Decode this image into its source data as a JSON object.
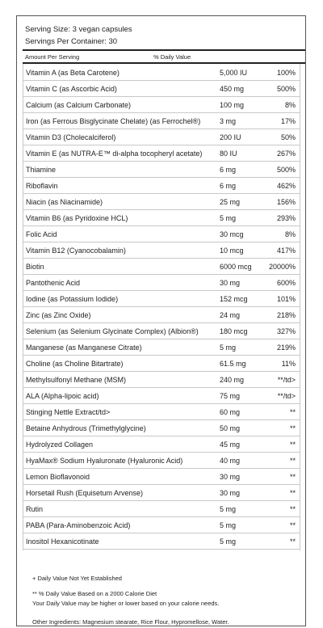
{
  "header": {
    "serving_size": "Serving Size: 3 vegan capsules",
    "servings_per_container": "Servings Per Container: 30",
    "amount_label": "Amount Per Serving",
    "dv_label": "% Daily Value"
  },
  "table": {
    "rows": [
      [
        "Vitamin A (as Beta Carotene)",
        "5,000 IU",
        "100%"
      ],
      [
        "Vitamin C (as Ascorbic Acid)",
        "450 mg",
        "500%"
      ],
      [
        "Calcium (as Calcium Carbonate)",
        "100 mg",
        "8%"
      ],
      [
        "Iron (as Ferrous Bisglycinate Chelate) (as Ferrochel®)",
        "3 mg",
        "17%"
      ],
      [
        "Vitamin D3 (Cholecalciferol)",
        "200 IU",
        "50%"
      ],
      [
        "Vitamin E (as NUTRA-E™ di-alpha tocopheryl acetate)",
        "80 IU",
        "267%"
      ],
      [
        "Thiamine",
        "6 mg",
        "500%"
      ],
      [
        "Riboflavin",
        "6 mg",
        "462%"
      ],
      [
        "Niacin (as Niacinamide)",
        "25 mg",
        "156%"
      ],
      [
        "Vitamin B6 (as Pyridoxine HCL)",
        "5 mg",
        "293%"
      ],
      [
        "Folic Acid",
        "30 mcg",
        "8%"
      ],
      [
        "Vitamin B12 (Cyanocobalamin)",
        "10 mcg",
        "417%"
      ],
      [
        "Biotin",
        "6000 mcg",
        "20000%"
      ],
      [
        "Pantothenic Acid",
        "30 mg",
        "600%"
      ],
      [
        "Iodine (as Potassium Iodide)",
        "152 mcg",
        "101%"
      ],
      [
        "Zinc (as Zinc Oxide)",
        "24 mg",
        "218%"
      ],
      [
        "Selenium (as Selenium Glycinate Complex) (Albion®)",
        "180 mcg",
        "327%"
      ],
      [
        "Manganese (as Manganese Citrate)",
        "5 mg",
        "219%"
      ],
      [
        "Choline (as Choline Bitartrate)",
        "61.5 mg",
        "11%"
      ],
      [
        "Methylsulfonyl Methane (MSM)",
        "240 mg",
        "**/td>"
      ],
      [
        "ALA (Alpha-lipoic acid)",
        "75 mg",
        "**/td>"
      ],
      [
        "Stinging Nettle Extract/td>",
        "60 mg",
        "**"
      ],
      [
        "Betaine Anhydrous (Trimethylglycine)",
        "50 mg",
        "**"
      ],
      [
        "Hydrolyzed Collagen",
        "45 mg",
        "**"
      ],
      [
        "HyaMax® Sodium Hyaluronate (Hyaluronic Acid)",
        "40 mg",
        "**"
      ],
      [
        "Lemon Bioflavonoid",
        "30 mg",
        "**"
      ],
      [
        "Horsetail Rush (Equisetum Arvense)",
        "30 mg",
        "**"
      ],
      [
        "Rutin",
        "5 mg",
        "**"
      ],
      [
        "PABA (Para-Aminobenzoic Acid)",
        "5 mg",
        "**"
      ],
      [
        "Inositol Hexanicotinate",
        "5 mg",
        "**"
      ]
    ]
  },
  "footnotes": [
    "+ Daily Value Not Yet Established",
    "** % Daily Value Based on a 2000 Calorie Diet",
    "Your Daily Value may be higher or lower based on your calorie needs.",
    "Other Ingredients: Magnesium stearate, Rice Flour, Hypromellose, Water."
  ]
}
